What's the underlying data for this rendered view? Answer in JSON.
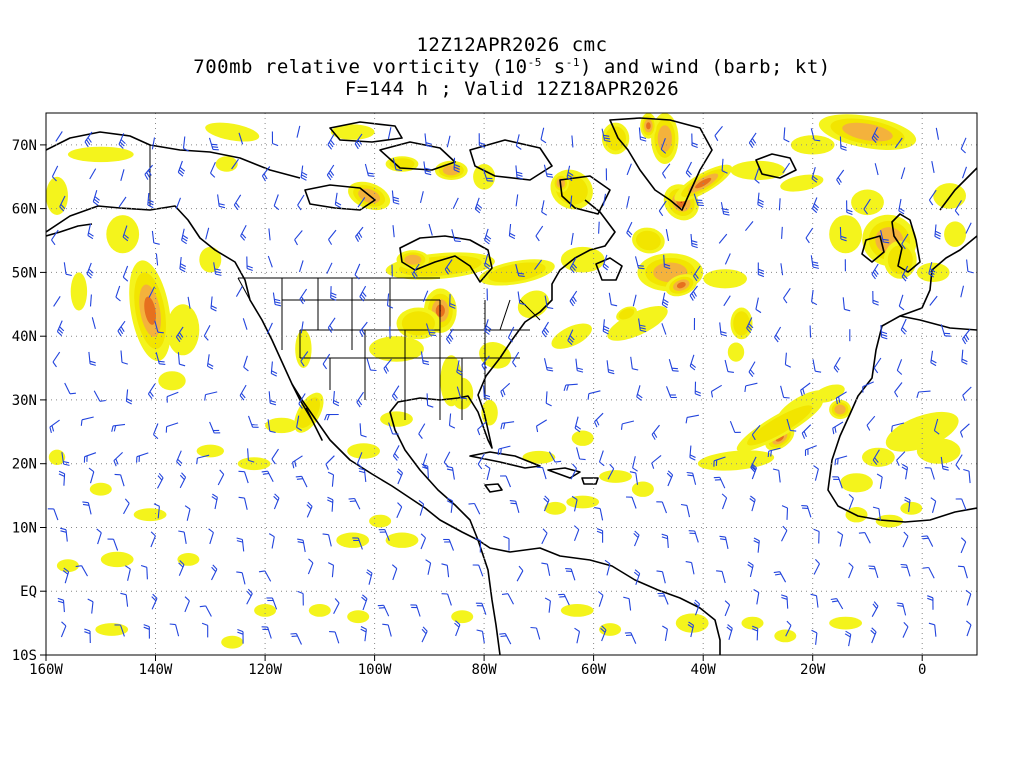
{
  "title": {
    "line1": "12Z12APR2026 cmc",
    "line2_prefix": "700mb relative vorticity (10",
    "line2_exp1": "-5",
    "line2_mid": " s",
    "line2_exp2": "-1",
    "line2_suffix": ") and wind (barb; kt)",
    "line3": "F=144 h ; Valid 12Z18APR2026"
  },
  "chart_data": {
    "type": "map",
    "projection": "cylindrical equidistant",
    "lon_range": [
      -160,
      10
    ],
    "lat_range": [
      -10,
      75
    ],
    "grid": true,
    "x_ticks": [
      {
        "value": -160,
        "label": "160W"
      },
      {
        "value": -140,
        "label": "140W"
      },
      {
        "value": -120,
        "label": "120W"
      },
      {
        "value": -100,
        "label": "100W"
      },
      {
        "value": -80,
        "label": "80W"
      },
      {
        "value": -60,
        "label": "60W"
      },
      {
        "value": -40,
        "label": "40W"
      },
      {
        "value": -20,
        "label": "20W"
      },
      {
        "value": 0,
        "label": "0"
      }
    ],
    "y_ticks": [
      {
        "value": 70,
        "label": "70N"
      },
      {
        "value": 60,
        "label": "60N"
      },
      {
        "value": 50,
        "label": "50N"
      },
      {
        "value": 40,
        "label": "40N"
      },
      {
        "value": 30,
        "label": "30N"
      },
      {
        "value": 20,
        "label": "20N"
      },
      {
        "value": 10,
        "label": "10N"
      },
      {
        "value": 0,
        "label": "EQ"
      },
      {
        "value": -10,
        "label": "10S"
      }
    ],
    "vorticity_shading": {
      "colors": [
        "#f4f41c",
        "#f2e500",
        "#f4b23c",
        "#e6701e",
        "#c0281a"
      ],
      "features": [
        {
          "name": "n-pacific-trough",
          "lon": -141,
          "lat": 44,
          "level": 4
        },
        {
          "name": "great-lakes-max",
          "lon": -88,
          "lat": 44,
          "level": 5
        },
        {
          "name": "greenland-coast",
          "lon": -44,
          "lat": 61,
          "level": 5
        },
        {
          "name": "subtropical-atlantic",
          "lon": -26,
          "lat": 24,
          "level": 4
        },
        {
          "name": "hudson-bay-band",
          "lon": -88,
          "lat": 50,
          "level": 3
        },
        {
          "name": "labrador-sea",
          "lon": -46,
          "lat": 50,
          "level": 3
        },
        {
          "name": "british-isles",
          "lon": -6,
          "lat": 55,
          "level": 3
        },
        {
          "name": "ne-atlantic-band",
          "lon": -10,
          "lat": 72,
          "level": 3
        },
        {
          "name": "canadian-arctic",
          "lon": -100,
          "lat": 60,
          "level": 3
        },
        {
          "name": "western-us-coast",
          "lon": -112,
          "lat": 28,
          "level": 2
        }
      ]
    },
    "barb_color": "#2244dd",
    "coastline_color": "#000000"
  }
}
